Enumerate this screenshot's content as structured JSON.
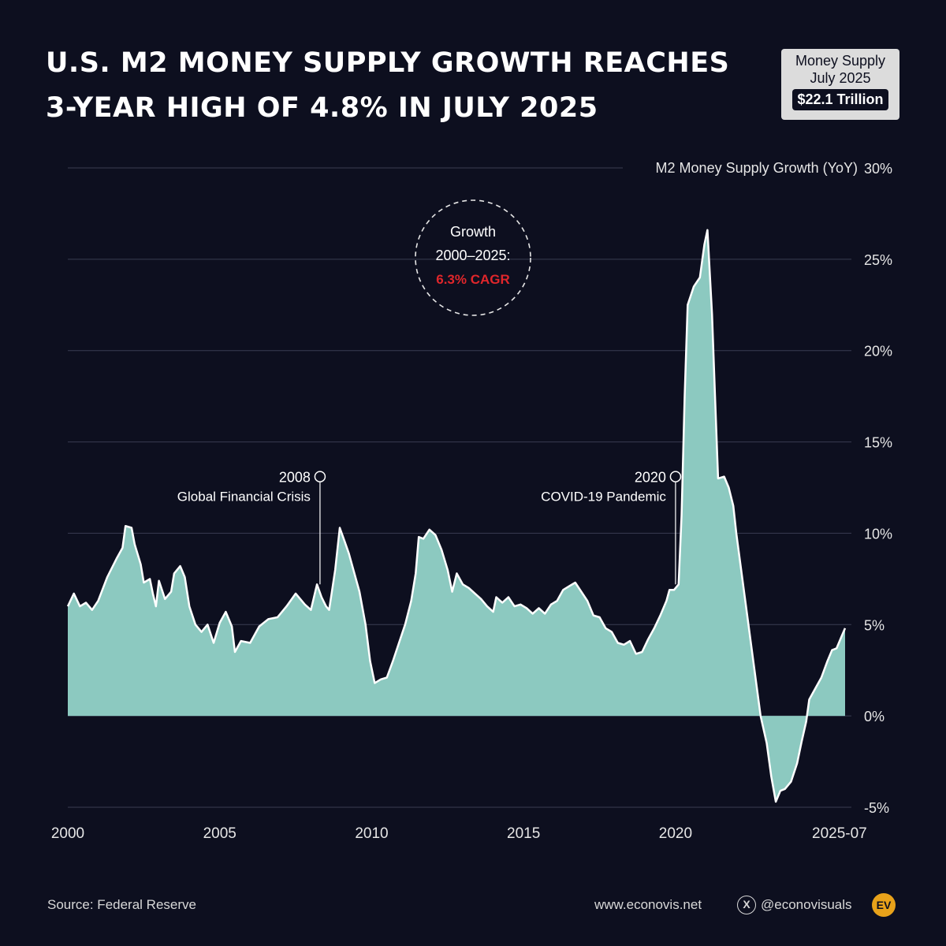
{
  "title_lines": [
    "U.S. M2 MONEY SUPPLY GROWTH REACHES",
    "3-YEAR HIGH OF 4.8% IN JULY 2025"
  ],
  "badge": {
    "label_1": "Money Supply",
    "label_2": "July 2025",
    "value": "$22.1 Trillion"
  },
  "footer": {
    "source": "Source: Federal Reserve",
    "website": "www.econovis.net",
    "handle": "@econovisuals",
    "logo_text": "EV",
    "x_icon": "x-logo-icon"
  },
  "colors": {
    "background": "#0d0f1f",
    "area_fill": "#8cc9c0",
    "line": "#ffffff",
    "grid": "#3a3d52",
    "accent_red": "#e0262b"
  },
  "chart_data": {
    "type": "area",
    "ylabel": "M2 Money Supply Growth (YoY)",
    "ylim": [
      -5,
      30
    ],
    "yticks": [
      -5,
      0,
      5,
      10,
      15,
      20,
      25,
      30
    ],
    "ytick_labels": [
      "-5%",
      "0%",
      "5%",
      "10%",
      "15%",
      "20%",
      "25%",
      "30%"
    ],
    "xlim": [
      2000,
      2025.58
    ],
    "xticks": [
      2000,
      2005,
      2010,
      2015,
      2020,
      2025.58
    ],
    "xtick_labels": [
      "2000",
      "2005",
      "2010",
      "2015",
      "2020",
      "2025-07"
    ],
    "grid": true,
    "annotations": [
      {
        "x": 2008.3,
        "marker_y": 13.1,
        "year": "2008",
        "label": "Global Financial Crisis"
      },
      {
        "x": 2020.0,
        "marker_y": 13.1,
        "year": "2020",
        "label": "COVID-19 Pandemic"
      }
    ],
    "cagr_callout": {
      "line_1": "Growth",
      "line_2": "2000–2025:",
      "value": "6.3% CAGR"
    },
    "series": [
      {
        "name": "M2 YoY growth (%)",
        "points": [
          [
            2000.0,
            6.0
          ],
          [
            2000.2,
            6.7
          ],
          [
            2000.4,
            6.0
          ],
          [
            2000.6,
            6.2
          ],
          [
            2000.8,
            5.8
          ],
          [
            2001.0,
            6.3
          ],
          [
            2001.3,
            7.6
          ],
          [
            2001.6,
            8.6
          ],
          [
            2001.8,
            9.2
          ],
          [
            2001.9,
            10.4
          ],
          [
            2002.1,
            10.3
          ],
          [
            2002.2,
            9.4
          ],
          [
            2002.4,
            8.3
          ],
          [
            2002.5,
            7.3
          ],
          [
            2002.7,
            7.5
          ],
          [
            2002.8,
            6.7
          ],
          [
            2002.9,
            6.0
          ],
          [
            2003.0,
            7.4
          ],
          [
            2003.2,
            6.4
          ],
          [
            2003.4,
            6.8
          ],
          [
            2003.5,
            7.8
          ],
          [
            2003.7,
            8.2
          ],
          [
            2003.85,
            7.6
          ],
          [
            2004.0,
            6.0
          ],
          [
            2004.2,
            5.0
          ],
          [
            2004.4,
            4.6
          ],
          [
            2004.6,
            5.0
          ],
          [
            2004.8,
            4.0
          ],
          [
            2005.0,
            5.1
          ],
          [
            2005.2,
            5.7
          ],
          [
            2005.4,
            4.9
          ],
          [
            2005.5,
            3.5
          ],
          [
            2005.7,
            4.1
          ],
          [
            2006.0,
            4.0
          ],
          [
            2006.3,
            4.9
          ],
          [
            2006.6,
            5.3
          ],
          [
            2006.9,
            5.4
          ],
          [
            2007.2,
            6.0
          ],
          [
            2007.5,
            6.7
          ],
          [
            2007.8,
            6.1
          ],
          [
            2008.0,
            5.8
          ],
          [
            2008.2,
            7.2
          ],
          [
            2008.35,
            6.5
          ],
          [
            2008.5,
            6.0
          ],
          [
            2008.6,
            5.8
          ],
          [
            2008.8,
            8.0
          ],
          [
            2008.95,
            10.3
          ],
          [
            2009.1,
            9.6
          ],
          [
            2009.25,
            8.9
          ],
          [
            2009.4,
            8.0
          ],
          [
            2009.6,
            6.8
          ],
          [
            2009.8,
            5.0
          ],
          [
            2009.95,
            3.0
          ],
          [
            2010.1,
            1.8
          ],
          [
            2010.3,
            2.0
          ],
          [
            2010.5,
            2.1
          ],
          [
            2010.7,
            3.0
          ],
          [
            2010.9,
            4.0
          ],
          [
            2011.1,
            5.0
          ],
          [
            2011.3,
            6.3
          ],
          [
            2011.45,
            7.8
          ],
          [
            2011.55,
            9.8
          ],
          [
            2011.7,
            9.7
          ],
          [
            2011.9,
            10.2
          ],
          [
            2012.1,
            9.9
          ],
          [
            2012.3,
            9.1
          ],
          [
            2012.5,
            8.0
          ],
          [
            2012.65,
            6.8
          ],
          [
            2012.8,
            7.8
          ],
          [
            2013.0,
            7.2
          ],
          [
            2013.2,
            7.0
          ],
          [
            2013.4,
            6.7
          ],
          [
            2013.6,
            6.4
          ],
          [
            2013.8,
            6.0
          ],
          [
            2014.0,
            5.7
          ],
          [
            2014.1,
            6.5
          ],
          [
            2014.3,
            6.2
          ],
          [
            2014.5,
            6.5
          ],
          [
            2014.7,
            6.0
          ],
          [
            2014.9,
            6.1
          ],
          [
            2015.1,
            5.9
          ],
          [
            2015.3,
            5.6
          ],
          [
            2015.5,
            5.9
          ],
          [
            2015.7,
            5.6
          ],
          [
            2015.9,
            6.1
          ],
          [
            2016.1,
            6.3
          ],
          [
            2016.3,
            6.9
          ],
          [
            2016.5,
            7.1
          ],
          [
            2016.7,
            7.3
          ],
          [
            2016.9,
            6.8
          ],
          [
            2017.1,
            6.3
          ],
          [
            2017.3,
            5.5
          ],
          [
            2017.5,
            5.4
          ],
          [
            2017.7,
            4.8
          ],
          [
            2017.9,
            4.6
          ],
          [
            2018.1,
            4.0
          ],
          [
            2018.3,
            3.9
          ],
          [
            2018.5,
            4.1
          ],
          [
            2018.7,
            3.4
          ],
          [
            2018.9,
            3.5
          ],
          [
            2019.1,
            4.2
          ],
          [
            2019.3,
            4.8
          ],
          [
            2019.5,
            5.5
          ],
          [
            2019.7,
            6.3
          ],
          [
            2019.8,
            6.9
          ],
          [
            2019.95,
            6.9
          ],
          [
            2020.1,
            7.2
          ],
          [
            2020.2,
            11.0
          ],
          [
            2020.3,
            17.5
          ],
          [
            2020.4,
            22.5
          ],
          [
            2020.6,
            23.5
          ],
          [
            2020.8,
            24.0
          ],
          [
            2020.95,
            25.8
          ],
          [
            2021.05,
            26.6
          ],
          [
            2021.2,
            22.0
          ],
          [
            2021.3,
            17.5
          ],
          [
            2021.4,
            13.0
          ],
          [
            2021.6,
            13.1
          ],
          [
            2021.75,
            12.5
          ],
          [
            2021.9,
            11.5
          ],
          [
            2022.0,
            10.0
          ],
          [
            2022.2,
            7.5
          ],
          [
            2022.4,
            5.0
          ],
          [
            2022.6,
            2.5
          ],
          [
            2022.8,
            0.0
          ],
          [
            2023.0,
            -1.5
          ],
          [
            2023.15,
            -3.3
          ],
          [
            2023.3,
            -4.7
          ],
          [
            2023.45,
            -4.1
          ],
          [
            2023.6,
            -4.0
          ],
          [
            2023.8,
            -3.6
          ],
          [
            2024.0,
            -2.6
          ],
          [
            2024.15,
            -1.4
          ],
          [
            2024.3,
            -0.3
          ],
          [
            2024.4,
            0.9
          ],
          [
            2024.6,
            1.5
          ],
          [
            2024.8,
            2.1
          ],
          [
            2025.0,
            3.0
          ],
          [
            2025.15,
            3.6
          ],
          [
            2025.3,
            3.7
          ],
          [
            2025.45,
            4.3
          ],
          [
            2025.58,
            4.8
          ]
        ]
      }
    ]
  }
}
